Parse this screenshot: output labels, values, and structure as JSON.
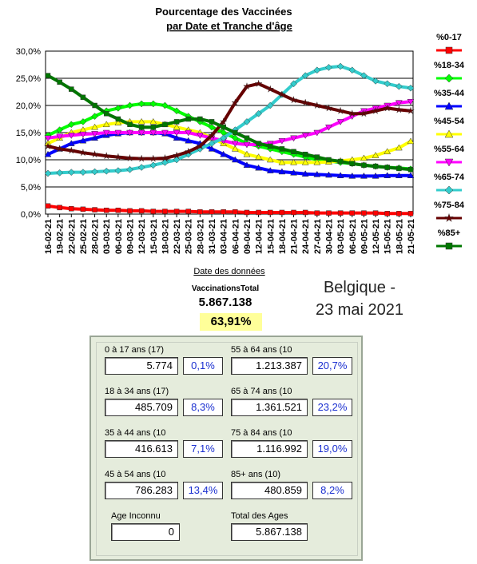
{
  "chart_data": {
    "type": "line",
    "title": "Pourcentage des Vaccinées",
    "subtitle": "par Date et Tranche d'âge",
    "xlabel": "Date des données",
    "ylabel": "",
    "ylim": [
      0,
      30
    ],
    "yticks": [
      "0,0%",
      "5,0%",
      "10,0%",
      "15,0%",
      "20,0%",
      "25,0%",
      "30,0%"
    ],
    "ytick_values": [
      0,
      5,
      10,
      15,
      20,
      25,
      30
    ],
    "grid": true,
    "legend_position": "right",
    "categories": [
      "16-02-21",
      "19-02-21",
      "22-02-21",
      "25-02-21",
      "28-02-21",
      "03-03-21",
      "06-03-21",
      "09-03-21",
      "12-03-21",
      "15-03-21",
      "18-03-21",
      "22-03-21",
      "25-03-21",
      "28-03-21",
      "31-03-21",
      "03-04-21",
      "06-04-21",
      "09-04-21",
      "12-04-21",
      "15-04-21",
      "18-04-21",
      "21-04-21",
      "24-04-21",
      "27-04-21",
      "30-04-21",
      "03-05-21",
      "06-05-21",
      "09-05-21",
      "12-05-21",
      "15-05-21",
      "18-05-21",
      "21-05-21"
    ],
    "xticks": [
      "16-02-21",
      "19-02-21",
      "22-02-21",
      "25-02-21",
      "28-02-21",
      "03-03-21",
      "06-03-21",
      "09-03-21",
      "12-03-21",
      "15-03-21",
      "18-03-21",
      "22-03-21",
      "25-03-21",
      "28-03-21",
      "31-03-21",
      "03-04-21",
      "06-04-21",
      "09-04-21",
      "12-04-21",
      "15-04-21",
      "18-04-21",
      "21-04-21",
      "24-04-21",
      "27-04-21",
      "30-04-21",
      "03-05-21",
      "06-05-21",
      "09-05-21",
      "12-05-21",
      "15-05-21",
      "18-05-21",
      "21-05-21"
    ],
    "series": [
      {
        "name": "%0-17",
        "color": "#ff0000",
        "marker": "square",
        "values": [
          1.5,
          1.2,
          1.0,
          0.9,
          0.8,
          0.7,
          0.7,
          0.6,
          0.6,
          0.5,
          0.5,
          0.5,
          0.5,
          0.4,
          0.4,
          0.4,
          0.4,
          0.3,
          0.3,
          0.3,
          0.3,
          0.3,
          0.3,
          0.2,
          0.2,
          0.2,
          0.2,
          0.2,
          0.2,
          0.1,
          0.1,
          0.1
        ]
      },
      {
        "name": "%18-34",
        "color": "#00ff00",
        "marker": "diamond",
        "values": [
          14.5,
          15.5,
          16.5,
          17.0,
          18.0,
          19.0,
          19.5,
          20.0,
          20.3,
          20.3,
          20.0,
          19.0,
          18.0,
          17.0,
          16.0,
          15.0,
          14.0,
          13.0,
          12.5,
          12.0,
          11.5,
          11.0,
          10.5,
          10.0,
          9.8,
          9.5,
          9.3,
          9.0,
          8.8,
          8.6,
          8.5,
          8.3
        ]
      },
      {
        "name": "%35-44",
        "color": "#0000ff",
        "marker": "triangle-up",
        "values": [
          11.0,
          12.0,
          13.0,
          13.5,
          14.0,
          14.5,
          14.8,
          15.0,
          15.0,
          15.0,
          14.8,
          14.0,
          13.5,
          13.0,
          12.0,
          11.0,
          10.0,
          9.0,
          8.5,
          8.0,
          7.8,
          7.6,
          7.4,
          7.3,
          7.2,
          7.1,
          7.0,
          7.0,
          7.0,
          7.1,
          7.1,
          7.1
        ]
      },
      {
        "name": "%45-54",
        "color": "#ffff00",
        "marker": "triangle-up",
        "values": [
          13.0,
          14.0,
          15.0,
          15.5,
          16.0,
          16.5,
          16.8,
          17.0,
          17.0,
          17.0,
          16.5,
          16.0,
          15.5,
          15.0,
          14.0,
          13.0,
          12.0,
          11.0,
          10.5,
          10.0,
          9.5,
          9.5,
          9.5,
          9.5,
          9.6,
          9.8,
          10.0,
          10.3,
          10.8,
          11.5,
          12.2,
          13.4
        ]
      },
      {
        "name": "%55-64",
        "color": "#ff00ff",
        "marker": "triangle-down",
        "values": [
          14.0,
          14.3,
          14.5,
          14.7,
          14.8,
          15.0,
          15.0,
          15.0,
          15.0,
          15.0,
          15.0,
          15.0,
          15.0,
          14.5,
          14.0,
          13.5,
          13.0,
          12.8,
          12.8,
          13.0,
          13.5,
          14.0,
          14.5,
          15.0,
          16.0,
          17.0,
          18.0,
          19.0,
          19.5,
          20.0,
          20.5,
          20.7
        ]
      },
      {
        "name": "%65-74",
        "color": "#33cccc",
        "marker": "diamond",
        "values": [
          7.5,
          7.6,
          7.7,
          7.7,
          7.8,
          7.9,
          8.0,
          8.2,
          8.6,
          9.0,
          9.5,
          10.0,
          11.0,
          12.0,
          13.0,
          14.0,
          15.5,
          17.0,
          18.5,
          20.0,
          22.0,
          24.0,
          25.5,
          26.5,
          27.0,
          27.2,
          26.5,
          25.5,
          24.5,
          24.0,
          23.5,
          23.2
        ]
      },
      {
        "name": "%75-84",
        "color": "#660000",
        "marker": "star",
        "values": [
          12.5,
          12.0,
          11.7,
          11.3,
          11.0,
          10.7,
          10.5,
          10.3,
          10.2,
          10.2,
          10.3,
          10.8,
          11.5,
          12.5,
          14.5,
          17.0,
          20.5,
          23.5,
          24.0,
          23.0,
          22.0,
          21.0,
          20.5,
          20.0,
          19.5,
          19.0,
          18.5,
          18.5,
          19.0,
          19.5,
          19.2,
          19.0
        ]
      },
      {
        "name": "%85+",
        "color": "#007700",
        "marker": "square",
        "values": [
          25.5,
          24.3,
          23.0,
          21.5,
          20.0,
          18.5,
          17.5,
          16.5,
          16.0,
          16.0,
          16.5,
          17.0,
          17.5,
          17.5,
          17.0,
          16.0,
          15.0,
          14.0,
          13.0,
          12.5,
          12.0,
          11.5,
          11.0,
          10.5,
          10.0,
          9.7,
          9.3,
          9.0,
          8.8,
          8.6,
          8.4,
          8.2
        ]
      }
    ]
  },
  "summary": {
    "vaccinations_label": "VaccinationsTotal",
    "vaccinations_total": "5.867.138",
    "vaccinations_pct": "63,91%",
    "country": "Belgique -",
    "date": "23 mai 2021"
  },
  "panel": {
    "groups": [
      {
        "label": "0 à 17 ans (17)",
        "count": "5.774",
        "pct": "0,1%"
      },
      {
        "label": "18 à 34 ans (17)",
        "count": "485.709",
        "pct": "8,3%"
      },
      {
        "label": "35 à 44 ans (10",
        "count": "416.613",
        "pct": "7,1%"
      },
      {
        "label": "45 à 54 ans (10",
        "count": "786.283",
        "pct": "13,4%"
      },
      {
        "label": "55 à 64 ans (10",
        "count": "1.213.387",
        "pct": "20,7%"
      },
      {
        "label": "65 à 74 ans (10",
        "count": "1.361.521",
        "pct": "23,2%"
      },
      {
        "label": "75 à 84 ans (10",
        "count": "1.116.992",
        "pct": "19,0%"
      },
      {
        "label": "85+ ans (10)",
        "count": "480.859",
        "pct": "8,2%"
      }
    ],
    "unknown": {
      "label": "Age Inconnu",
      "count": "0"
    },
    "total": {
      "label": "Total des Ages",
      "count": "5.867.138"
    }
  }
}
